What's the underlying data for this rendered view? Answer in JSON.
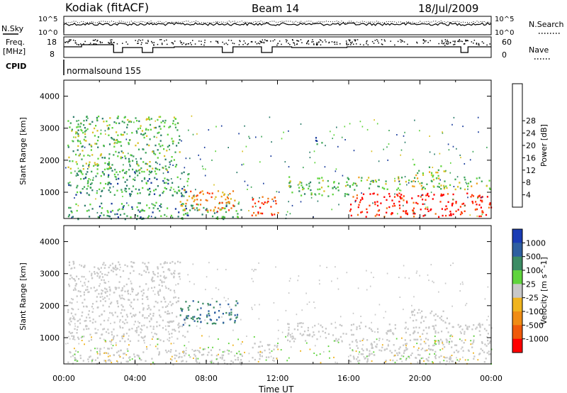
{
  "header": {
    "station": "Kodiak (fitACF)",
    "beam": "Beam 14",
    "date": "18/Jul/2009"
  },
  "top_panels": {
    "nsky_label": "N.Sky",
    "nsky_ticks": [
      "10^5",
      "10^0"
    ],
    "nsearch_label": "N.Search",
    "nsearch_ticks": [
      "10^5",
      "10^0"
    ],
    "freq_label": "Freq.",
    "freq_unit": "[MHz]",
    "freq_ticks": [
      "18",
      "8"
    ],
    "nave_label": "Nave",
    "nave_ticks": [
      "60",
      "0"
    ],
    "cpid_label": "CPID",
    "cpid_value": "normalsound 155"
  },
  "chart_data": [
    {
      "type": "heatmap",
      "title": "",
      "xlabel": "",
      "ylabel": "Slant Range [km]",
      "x_ticks": [
        "00:00",
        "04:00",
        "08:00",
        "12:00",
        "16:00",
        "20:00",
        "00:00"
      ],
      "x_range_hours": [
        0,
        24
      ],
      "y_ticks": [
        1000,
        2000,
        3000,
        4000
      ],
      "ylim": [
        180,
        4500
      ],
      "colorbar": {
        "label": "Power [dB]",
        "ticks": [
          "4",
          "8",
          "12",
          "16",
          "20",
          "24",
          "28"
        ],
        "colors": [
          "#0000e6",
          "#1a3c9c",
          "#2e7d6b",
          "#3fa65a",
          "#5fd43c",
          "#d9c226",
          "#f0a01e",
          "#f07814",
          "#ff3c0a",
          "#ff0000"
        ]
      },
      "regions": [
        {
          "t": [
            0.2,
            6.5
          ],
          "r": [
            1700,
            3400
          ],
          "v": 12
        },
        {
          "t": [
            0.2,
            7
          ],
          "r": [
            900,
            1700
          ],
          "v": 10
        },
        {
          "t": [
            0.2,
            10
          ],
          "r": [
            180,
            700
          ],
          "v": 10
        },
        {
          "t": [
            6.5,
            9.8
          ],
          "r": [
            400,
            1100
          ],
          "v": 22
        },
        {
          "t": [
            10.5,
            12
          ],
          "r": [
            300,
            900
          ],
          "v": 26
        },
        {
          "t": [
            12.5,
            16
          ],
          "r": [
            900,
            1500
          ],
          "v": 12
        },
        {
          "t": [
            16,
            24
          ],
          "r": [
            1100,
            1500
          ],
          "v": 14
        },
        {
          "t": [
            16,
            24
          ],
          "r": [
            250,
            1000
          ],
          "v": 28
        },
        {
          "t": [
            19.5,
            21.5
          ],
          "r": [
            1500,
            1900
          ],
          "v": 14
        },
        {
          "t": [
            14,
            14.5
          ],
          "r": [
            2500,
            2800
          ],
          "v": 8
        }
      ]
    },
    {
      "type": "heatmap",
      "title": "",
      "xlabel": "Time UT",
      "ylabel": "Slant Range [km]",
      "x_ticks": [
        "00:00",
        "04:00",
        "08:00",
        "12:00",
        "16:00",
        "20:00",
        "00:00"
      ],
      "x_range_hours": [
        0,
        24
      ],
      "y_ticks": [
        1000,
        2000,
        3000,
        4000
      ],
      "ylim": [
        180,
        4500
      ],
      "colorbar": {
        "label": "Velocity [m s^-1]",
        "ticks": [
          "1000",
          "500",
          "100",
          "25",
          "-25",
          "-100",
          "-500",
          "-1000"
        ],
        "colors": [
          "#1a3cb4",
          "#2e5fa0",
          "#3c8c64",
          "#5fd43c",
          "#c8c8c8",
          "#f0b41e",
          "#f08c14",
          "#f05a0a",
          "#ff0000"
        ]
      },
      "regions": [
        {
          "t": [
            0.2,
            6.5
          ],
          "r": [
            1700,
            3400
          ],
          "v": 0
        },
        {
          "t": [
            0.2,
            7
          ],
          "r": [
            900,
            1700
          ],
          "v": 0
        },
        {
          "t": [
            0.2,
            10
          ],
          "r": [
            180,
            700
          ],
          "v": 0
        },
        {
          "t": [
            6.5,
            9.8
          ],
          "r": [
            1400,
            2200
          ],
          "v": 300
        },
        {
          "t": [
            10.5,
            12
          ],
          "r": [
            300,
            900
          ],
          "v": 0
        },
        {
          "t": [
            12.5,
            16
          ],
          "r": [
            900,
            1500
          ],
          "v": 0
        },
        {
          "t": [
            16,
            24
          ],
          "r": [
            250,
            1000
          ],
          "v": 0
        },
        {
          "t": [
            16,
            24
          ],
          "r": [
            1100,
            1500
          ],
          "v": 0
        },
        {
          "t": [
            19.5,
            21.5
          ],
          "r": [
            1500,
            1900
          ],
          "v": 0
        }
      ]
    }
  ]
}
